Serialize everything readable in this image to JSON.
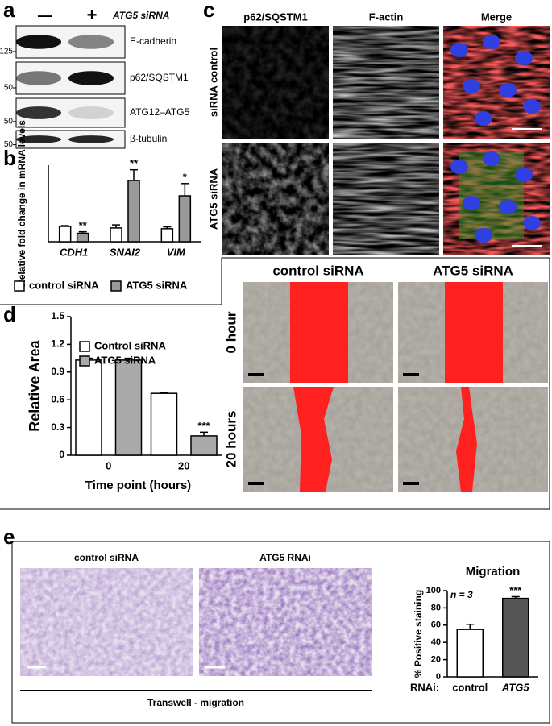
{
  "panel_labels": [
    "a",
    "b",
    "c",
    "d",
    "e"
  ],
  "blot": {
    "lanes": [
      "—",
      "+"
    ],
    "treatment": "ATG5 siRNA",
    "rows": [
      {
        "label": "E-cadherin",
        "marker": "125"
      },
      {
        "label": "p62/SQSTM1",
        "marker": "50"
      },
      {
        "label": "ATG12–ATG5",
        "marker": "50"
      },
      {
        "label": "β-tubulin",
        "marker": "50"
      }
    ]
  },
  "microscopy": {
    "columns": [
      "p62/SQSTM1",
      "F-actin",
      "Merge"
    ],
    "rows": [
      "siRNA control",
      "ATG5 siRNA"
    ]
  },
  "scratch": {
    "columns": [
      "control siRNA",
      "ATG5 siRNA"
    ],
    "rows": [
      "0 hour",
      "20 hours"
    ]
  },
  "transwell": {
    "images": [
      "control siRNA",
      "ATG5 RNAi"
    ],
    "caption": "Transwell - migration"
  },
  "chart_data": [
    {
      "type": "bar",
      "ylabel": "Relative fold change in mRNA levels",
      "categories": [
        "CDH1",
        "SNAI2",
        "VIM"
      ],
      "series": [
        {
          "name": "control siRNA",
          "color": "#ffffff",
          "values": [
            1.0,
            0.9,
            0.85
          ],
          "errors": [
            0.05,
            0.2,
            0.12
          ]
        },
        {
          "name": "ATG5 siRNA",
          "color": "#999999",
          "values": [
            0.55,
            4.0,
            3.0
          ],
          "errors": [
            0.1,
            0.7,
            0.8
          ],
          "annotations": [
            "**",
            "**",
            "*"
          ]
        }
      ],
      "ylim": [
        0,
        5
      ],
      "legend": "bottom"
    },
    {
      "type": "bar",
      "ylabel": "Relative Area",
      "xlabel": "Time point (hours)",
      "categories": [
        "0",
        "20"
      ],
      "series": [
        {
          "name": "Control siRNA",
          "color": "#ffffff",
          "values": [
            1.03,
            0.67
          ],
          "errors": [
            0.02,
            0.01
          ]
        },
        {
          "name": "ATG5 siRNA",
          "color": "#aaaaaa",
          "values": [
            1.03,
            0.21
          ],
          "errors": [
            0.02,
            0.04
          ],
          "annotations": [
            null,
            "***"
          ]
        }
      ],
      "ylim": [
        0,
        1.5
      ],
      "yticks": [
        0,
        0.3,
        0.6,
        0.9,
        1.2,
        1.5
      ],
      "legend": "upper center"
    },
    {
      "type": "bar",
      "title": "Migration",
      "ylabel": "% Positive staining",
      "note": "n = 3",
      "xprefix": "RNAi:",
      "categories": [
        "control",
        "ATG5"
      ],
      "series": [
        {
          "colors": [
            "#ffffff",
            "#555555"
          ],
          "values": [
            55,
            91
          ],
          "errors": [
            6,
            2
          ],
          "annotations": [
            null,
            "***"
          ]
        }
      ],
      "ylim": [
        0,
        100
      ],
      "yticks": [
        0,
        20,
        40,
        60,
        80,
        100
      ]
    }
  ]
}
